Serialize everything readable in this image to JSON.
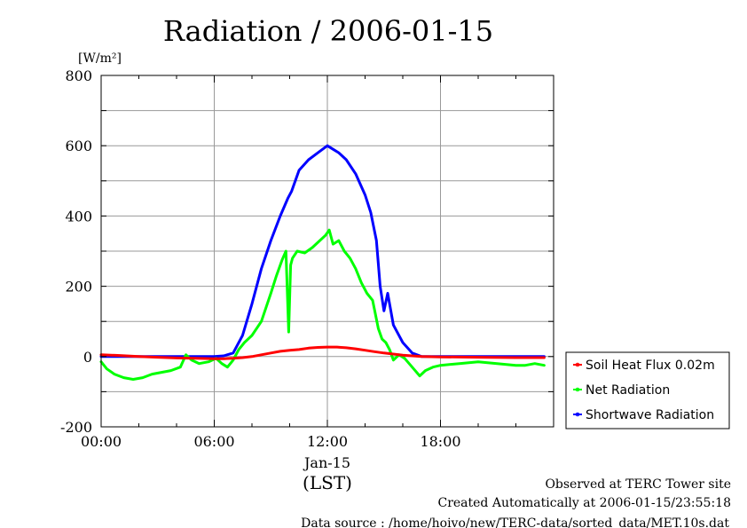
{
  "chart_data": {
    "type": "line",
    "title": "Radiation / 2006-01-15",
    "ylabel": "[W/m²]",
    "xlabel": "(LST)",
    "date_label": "Jan-15",
    "ylim": [
      -200,
      800
    ],
    "yticks": [
      -200,
      0,
      200,
      400,
      600,
      800
    ],
    "xlim": [
      0,
      24
    ],
    "xticks": [
      {
        "v": 0,
        "label": "00:00"
      },
      {
        "v": 6,
        "label": "06:00"
      },
      {
        "v": 12,
        "label": "12:00"
      },
      {
        "v": 18,
        "label": "18:00"
      }
    ],
    "grid": true,
    "legend_position": "right",
    "series": [
      {
        "name": "Soil Heat Flux 0.02m",
        "color": "#ff0000",
        "x": [
          0,
          1,
          2,
          3,
          4,
          5,
          6,
          6.5,
          7,
          7.5,
          8,
          8.5,
          9,
          9.5,
          10,
          10.5,
          11,
          11.5,
          12,
          12.5,
          13,
          13.5,
          14,
          14.5,
          15,
          15.5,
          16,
          16.5,
          17,
          18,
          20,
          22,
          23.5
        ],
        "values": [
          5,
          3,
          0,
          -2,
          -4,
          -5,
          -6,
          -6,
          -5,
          -3,
          0,
          5,
          10,
          15,
          18,
          20,
          24,
          26,
          27,
          27,
          25,
          22,
          18,
          14,
          10,
          7,
          4,
          2,
          0,
          -1,
          -2,
          -3,
          -3
        ]
      },
      {
        "name": "Net Radiation",
        "color": "#00ff00",
        "x": [
          0,
          0.3,
          0.7,
          1.2,
          1.7,
          2.2,
          2.7,
          3.2,
          3.7,
          4.2,
          4.5,
          4.8,
          5.2,
          5.7,
          6.1,
          6.4,
          6.7,
          7.0,
          7.3,
          7.6,
          8.0,
          8.5,
          9.0,
          9.3,
          9.6,
          9.8,
          9.95,
          10.05,
          10.15,
          10.4,
          10.8,
          11.2,
          11.6,
          11.9,
          12.1,
          12.3,
          12.6,
          12.9,
          13.2,
          13.5,
          13.8,
          14.1,
          14.4,
          14.7,
          14.9,
          15.1,
          15.3,
          15.5,
          15.8,
          16.1,
          16.5,
          16.9,
          17.2,
          17.6,
          18.0,
          19.0,
          20.0,
          21.0,
          22.0,
          22.5,
          23.0,
          23.5
        ],
        "values": [
          -15,
          -35,
          -50,
          -60,
          -65,
          -60,
          -50,
          -45,
          -40,
          -30,
          5,
          -10,
          -20,
          -15,
          -5,
          -20,
          -30,
          -10,
          20,
          40,
          60,
          100,
          180,
          230,
          275,
          300,
          70,
          260,
          280,
          300,
          295,
          310,
          330,
          345,
          360,
          320,
          330,
          300,
          280,
          250,
          210,
          180,
          160,
          80,
          50,
          40,
          20,
          -10,
          5,
          -5,
          -30,
          -55,
          -40,
          -30,
          -25,
          -20,
          -15,
          -20,
          -25,
          -25,
          -20,
          -25
        ]
      },
      {
        "name": "Shortwave Radiation",
        "color": "#0000ff",
        "x": [
          0,
          1,
          2,
          3,
          4,
          5,
          6,
          6.5,
          7,
          7.5,
          8,
          8.5,
          9,
          9.5,
          9.9,
          10.1,
          10.5,
          11,
          11.5,
          12,
          12.3,
          12.6,
          13,
          13.5,
          14,
          14.3,
          14.6,
          14.8,
          15.0,
          15.2,
          15.5,
          16,
          16.5,
          17,
          18,
          20,
          22,
          23.5
        ],
        "values": [
          0,
          0,
          0,
          0,
          0,
          0,
          0,
          2,
          10,
          60,
          150,
          250,
          330,
          400,
          450,
          470,
          530,
          560,
          580,
          600,
          590,
          580,
          560,
          520,
          460,
          410,
          330,
          200,
          130,
          180,
          90,
          40,
          10,
          0,
          0,
          0,
          0,
          0
        ]
      }
    ]
  },
  "footer": {
    "line1": "Observed at TERC Tower site",
    "line2": "Created Automatically at 2006-01-15/23:55:18",
    "line3": "Data source : /home/hoivo/new/TERC-data/sorted_data/MET.10s.dat"
  }
}
